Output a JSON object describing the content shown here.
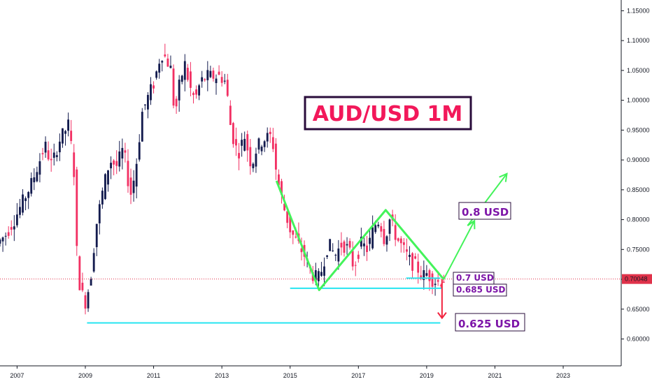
{
  "chart_data": {
    "type": "candlestick",
    "title": "AUD/USD 1M",
    "x_tick_labels": [
      "2007",
      "2009",
      "2011",
      "2013",
      "2015",
      "2017",
      "2019",
      "2021",
      "2023"
    ],
    "y_tick_labels": [
      "0.60000",
      "0.65000",
      "0.70000",
      "0.75000",
      "0.80000",
      "0.85000",
      "0.90000",
      "0.95000",
      "1.00000",
      "1.05000",
      "1.10000",
      "1.15000"
    ],
    "ylim": [
      0.555,
      1.168
    ],
    "xlim": [
      2006.5,
      2024.7
    ],
    "current_price": "0.70048",
    "colors": {
      "up": "#131b4e",
      "down": "#f23063",
      "support": "#26e5f0",
      "pattern": "#43f35a",
      "target_down": "#f2233f",
      "price_line": "#e0324a",
      "label_purple": "#7d15a8"
    },
    "price_series": {
      "description_note": "",
      "points": [
        [
          2006.5,
          0.76
        ],
        [
          2006.75,
          0.775
        ],
        [
          2007.0,
          0.8
        ],
        [
          2007.25,
          0.83
        ],
        [
          2007.5,
          0.86
        ],
        [
          2007.75,
          0.9
        ],
        [
          2007.9,
          0.925
        ],
        [
          2008.1,
          0.89
        ],
        [
          2008.3,
          0.93
        ],
        [
          2008.6,
          0.96
        ],
        [
          2008.75,
          0.88
        ],
        [
          2008.85,
          0.72
        ],
        [
          2008.95,
          0.68
        ],
        [
          2009.1,
          0.66
        ],
        [
          2009.25,
          0.71
        ],
        [
          2009.4,
          0.79
        ],
        [
          2009.6,
          0.85
        ],
        [
          2009.8,
          0.9
        ],
        [
          2010.0,
          0.89
        ],
        [
          2010.2,
          0.92
        ],
        [
          2010.4,
          0.84
        ],
        [
          2010.55,
          0.88
        ],
        [
          2010.75,
          0.98
        ],
        [
          2010.95,
          1.01
        ],
        [
          2011.1,
          1.03
        ],
        [
          2011.3,
          1.08
        ],
        [
          2011.45,
          1.07
        ],
        [
          2011.6,
          1.05
        ],
        [
          2011.7,
          0.97
        ],
        [
          2011.85,
          1.03
        ],
        [
          2012.0,
          1.06
        ],
        [
          2012.15,
          1.02
        ],
        [
          2012.3,
          1.0
        ],
        [
          2012.45,
          1.03
        ],
        [
          2012.65,
          1.04
        ],
        [
          2012.85,
          1.04
        ],
        [
          2013.05,
          1.04
        ],
        [
          2013.2,
          1.03
        ],
        [
          2013.35,
          0.95
        ],
        [
          2013.55,
          0.91
        ],
        [
          2013.75,
          0.94
        ],
        [
          2013.95,
          0.89
        ],
        [
          2014.1,
          0.92
        ],
        [
          2014.3,
          0.935
        ],
        [
          2014.55,
          0.94
        ],
        [
          2014.7,
          0.87
        ],
        [
          2014.9,
          0.82
        ],
        [
          2015.1,
          0.78
        ],
        [
          2015.3,
          0.76
        ],
        [
          2015.5,
          0.74
        ],
        [
          2015.7,
          0.71
        ],
        [
          2015.9,
          0.7
        ],
        [
          2016.0,
          0.715
        ],
        [
          2016.2,
          0.76
        ],
        [
          2016.4,
          0.74
        ],
        [
          2016.6,
          0.76
        ],
        [
          2016.8,
          0.75
        ],
        [
          2016.95,
          0.72
        ],
        [
          2017.15,
          0.76
        ],
        [
          2017.35,
          0.75
        ],
        [
          2017.55,
          0.79
        ],
        [
          2017.7,
          0.8
        ],
        [
          2017.85,
          0.765
        ],
        [
          2018.0,
          0.8
        ],
        [
          2018.2,
          0.77
        ],
        [
          2018.4,
          0.75
        ],
        [
          2018.6,
          0.73
        ],
        [
          2018.8,
          0.72
        ],
        [
          2018.95,
          0.705
        ],
        [
          2019.1,
          0.71
        ],
        [
          2019.25,
          0.7
        ],
        [
          2019.4,
          0.695
        ],
        [
          2019.55,
          0.7
        ]
      ]
    },
    "annotations": {
      "double_top_pattern": [
        [
          2014.6,
          0.865
        ],
        [
          2015.85,
          0.682
        ],
        [
          2017.8,
          0.816
        ],
        [
          2019.5,
          0.7
        ]
      ],
      "support_1": {
        "from": 2015.0,
        "to": 2019.45,
        "y": 0.685
      },
      "support_2": {
        "from": 2009.05,
        "to": 2019.4,
        "y": 0.627
      },
      "support_short": {
        "from": 2018.4,
        "to": 2019.4,
        "y": 0.702
      },
      "bull_path": [
        [
          2019.5,
          0.7
        ],
        [
          2020.4,
          0.798
        ],
        [
          2020.2,
          0.79
        ],
        [
          2021.35,
          0.877
        ]
      ],
      "bear_arrow": {
        "x": 2019.45,
        "from": 0.7,
        "to": 0.635
      }
    },
    "labels": {
      "target_up": "0.8 USD",
      "level_a": "0.7 USD",
      "level_b": "0.685 USD",
      "target_down": "0.625 USD"
    }
  }
}
